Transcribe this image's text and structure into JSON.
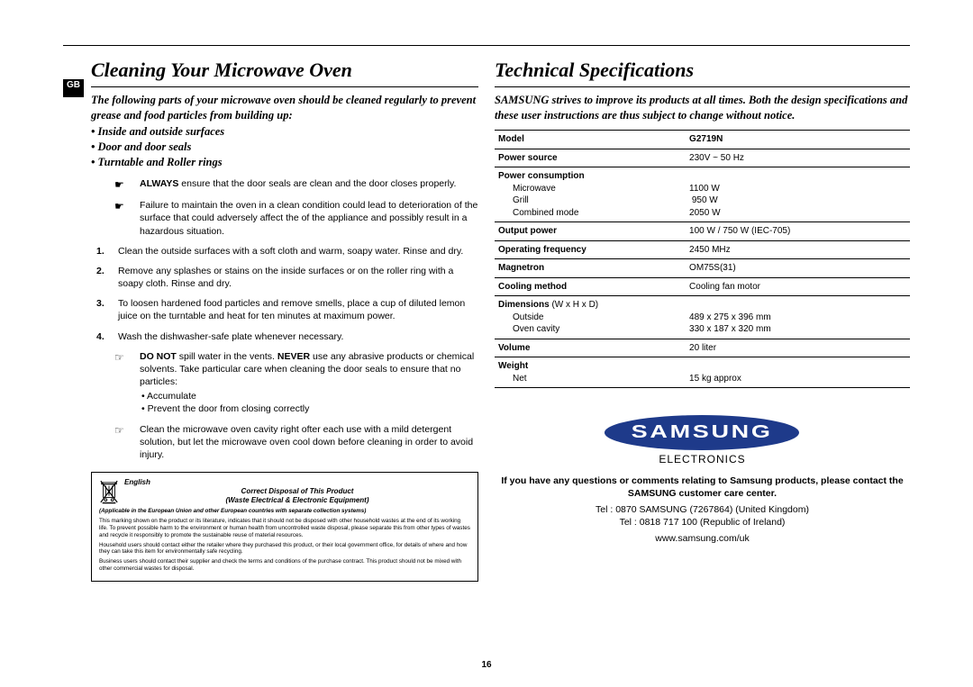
{
  "left": {
    "badge": "GB",
    "title": "Cleaning Your Microwave Oven",
    "lead": "The following parts of your microwave oven should be cleaned regularly to prevent grease and food particles from building up:",
    "bullets": [
      "Inside and outside surfaces",
      "Door and door seals",
      "Turntable and Roller rings"
    ],
    "tips": [
      {
        "marker": "☛",
        "html": "<b>ALWAYS</b> ensure that the door seals are clean and the door closes properly."
      },
      {
        "marker": "☛",
        "html": "Failure to maintain the oven in a clean condition could lead to deterioration of the surface that could adversely affect the of the appliance and possibly result in a hazardous situation."
      }
    ],
    "steps": [
      {
        "n": "1.",
        "html": "Clean the outside surfaces with a soft cloth and warm, soapy water. Rinse and dry."
      },
      {
        "n": "2.",
        "html": "Remove any splashes or stains on the inside surfaces or on the roller ring with a soapy cloth. Rinse and dry."
      },
      {
        "n": "3.",
        "html": "To loosen hardened food particles and remove smells, place a cup of diluted lemon juice on the turntable and heat for ten minutes at maximum power."
      },
      {
        "n": "4.",
        "html": "Wash the dishwasher-safe plate whenever necessary."
      }
    ],
    "warns": [
      {
        "marker": "☞",
        "html": "<b>DO NOT</b> spill water in the vents. <b>NEVER</b> use any abrasive products or chemical solvents. Take particular care when cleaning the door seals to ensure that no particles:",
        "subs": [
          "Accumulate",
          "Prevent the door from closing correctly"
        ]
      },
      {
        "marker": "☞",
        "html": "Clean the microwave oven cavity right ofter each use with a mild detergent solution, but let the microwave oven cool down before cleaning in order to avoid injury."
      }
    ],
    "disposal": {
      "lang": "English",
      "title1": "Correct Disposal of This Product",
      "title2": "(Waste Electrical & Electronic Equipment)",
      "paras": [
        "(Applicable in the European Union and other European countries with separate collection systems)",
        "This marking shown on the product or its literature, indicates that it should not be disposed with other household wastes at the end of its working life. To prevent possible harm to the environment or human health from uncontrolled waste disposal, please separate this from other types of wastes and recycle it responsibly to promote the sustainable reuse of material resources.",
        "Household users should contact either the retailer where they purchased this product, or their local government office, for details of where and how they can take this item for environmentally safe recycling.",
        "Business users should contact their supplier and check the terms and conditions of the purchase contract. This product should not be mixed with other commercial wastes for disposal."
      ]
    }
  },
  "right": {
    "title": "Technical Specifications",
    "lead": "SAMSUNG strives to improve its products at all times. Both the design specifications and these user instructions are thus subject to change without notice.",
    "specs": [
      {
        "k": "Model",
        "v": "<b>G2719N</b>"
      },
      {
        "k": "Power source",
        "v": "230V ~ 50 Hz"
      },
      {
        "k": "Power consumption<span class=\"sub\">Microwave</span><span class=\"sub\">Grill</span><span class=\"sub\">Combined mode</span>",
        "v": "<br>1100 W<br>&nbsp;950 W<br>2050 W"
      },
      {
        "k": "Output power",
        "v": "100 W / 750 W (IEC-705)"
      },
      {
        "k": "Operating frequency",
        "v": "2450 MHz"
      },
      {
        "k": "Magnetron",
        "v": "OM75S(31)"
      },
      {
        "k": "Cooling method",
        "v": "Cooling fan motor"
      },
      {
        "k": "Dimensions <span style=\"font-weight:normal\">(W x H x D)</span><span class=\"sub\">Outside</span><span class=\"sub\">Oven cavity</span>",
        "v": "<br>489 x 275 x 396 mm<br>330 x 187 x 320 mm"
      },
      {
        "k": "Volume",
        "v": "20 liter"
      },
      {
        "k": "Weight<span class=\"sub\">Net</span>",
        "v": "<br>15 kg approx"
      }
    ],
    "brand": "SAMSUNG",
    "electronics": "ELECTRONICS",
    "contact_bold": "If you have any questions or comments relating to Samsung products, please contact the SAMSUNG customer care center.",
    "tel1": "Tel : 0870 SAMSUNG (7267864) (United Kingdom)",
    "tel2": "Tel : 0818 717 100 (Republic of Ireland)",
    "url": "www.samsung.com/uk"
  },
  "page": "16",
  "colors": {
    "brand_blue": "#1e3a8a"
  }
}
